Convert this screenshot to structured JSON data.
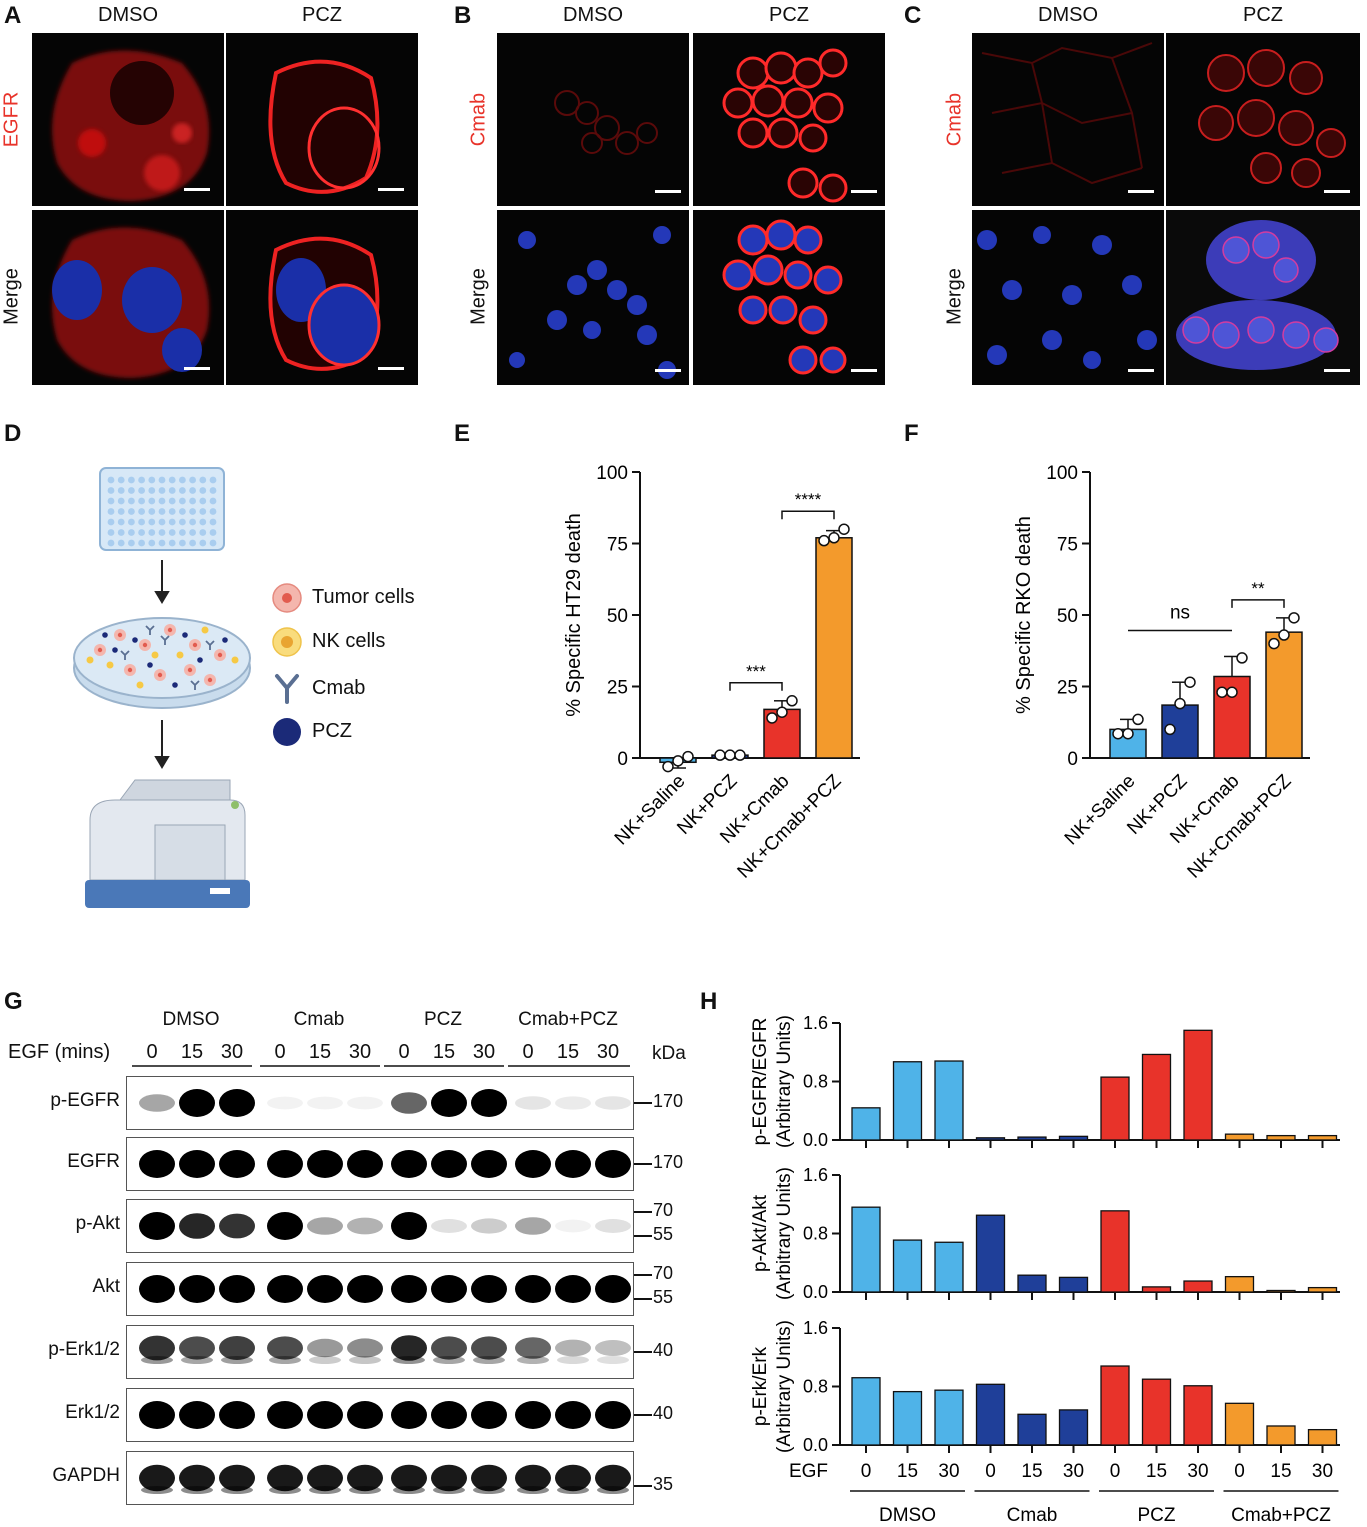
{
  "panels": {
    "A": {
      "letter": "A",
      "cols": [
        "DMSO",
        "PCZ"
      ],
      "rows": [
        "EGFR",
        "Merge"
      ]
    },
    "B": {
      "letter": "B",
      "cols": [
        "DMSO",
        "PCZ"
      ],
      "rows": [
        "Cmab",
        "Merge"
      ]
    },
    "C": {
      "letter": "C",
      "cols": [
        "DMSO",
        "PCZ"
      ],
      "rows": [
        "Cmab",
        "Merge"
      ]
    },
    "D": {
      "letter": "D",
      "legend": [
        "Tumor cells",
        "NK cells",
        "Cmab",
        "PCZ"
      ]
    },
    "E": {
      "letter": "E"
    },
    "F": {
      "letter": "F"
    },
    "G": {
      "letter": "G",
      "groups": [
        "DMSO",
        "Cmab",
        "PCZ",
        "Cmab+PCZ"
      ],
      "egf_label": "EGF (mins)",
      "times": [
        "0",
        "15",
        "30"
      ],
      "kda_label": "kDa",
      "blots": [
        {
          "label": "p-EGFR",
          "markers": [
            "170"
          ]
        },
        {
          "label": "EGFR",
          "markers": [
            "170"
          ]
        },
        {
          "label": "p-Akt",
          "markers": [
            "70",
            "55"
          ]
        },
        {
          "label": "Akt",
          "markers": [
            "70",
            "55"
          ]
        },
        {
          "label": "p-Erk1/2",
          "markers": [
            "40"
          ]
        },
        {
          "label": "Erk1/2",
          "markers": [
            "40"
          ]
        },
        {
          "label": "GAPDH",
          "markers": [
            "35"
          ]
        }
      ]
    },
    "H": {
      "letter": "H",
      "egf_label": "EGF"
    }
  },
  "chart_data": [
    {
      "type": "bar",
      "id": "E",
      "ylabel": "% Specific HT29 death",
      "ylim": [
        0,
        100
      ],
      "yticks": [
        0,
        25,
        50,
        75,
        100
      ],
      "categories": [
        "NK+Saline",
        "NK+PCZ",
        "NK+Cmab",
        "NK+Cmab+PCZ"
      ],
      "values": [
        -1.5,
        1,
        17,
        77
      ],
      "errors": [
        2,
        0.5,
        3,
        2.5
      ],
      "points": [
        [
          -3,
          -1,
          0.5
        ],
        [
          1,
          1,
          1
        ],
        [
          14,
          16,
          20
        ],
        [
          76,
          77,
          80
        ]
      ],
      "colors": [
        "#4fb3e8",
        "#1f3f99",
        "#e8332a",
        "#f39a2c"
      ],
      "significance": [
        {
          "from": 1,
          "to": 2,
          "label": "***"
        },
        {
          "from": 2,
          "to": 3,
          "label": "****"
        }
      ]
    },
    {
      "type": "bar",
      "id": "F",
      "ylabel": "% Specific RKO death",
      "ylim": [
        0,
        100
      ],
      "yticks": [
        0,
        25,
        50,
        75,
        100
      ],
      "categories": [
        "NK+Saline",
        "NK+PCZ",
        "NK+Cmab",
        "NK+Cmab+PCZ"
      ],
      "values": [
        10,
        18.5,
        28.5,
        44
      ],
      "errors": [
        3.5,
        8,
        7,
        5
      ],
      "points": [
        [
          8.5,
          8.5,
          13.5
        ],
        [
          10,
          19,
          26.5
        ],
        [
          23,
          23,
          35
        ],
        [
          40,
          43,
          49
        ]
      ],
      "colors": [
        "#4fb3e8",
        "#1f3f99",
        "#e8332a",
        "#f39a2c"
      ],
      "significance": [
        {
          "from": 0,
          "to": 2,
          "label": "ns"
        },
        {
          "from": 2,
          "to": 3,
          "label": "**"
        }
      ]
    },
    {
      "type": "bar",
      "id": "H",
      "groups": [
        "DMSO",
        "Cmab",
        "PCZ",
        "Cmab+PCZ"
      ],
      "x": [
        "0",
        "15",
        "30",
        "0",
        "15",
        "30",
        "0",
        "15",
        "30",
        "0",
        "15",
        "30"
      ],
      "colors": [
        "#4fb3e8",
        "#1f3f99",
        "#e8332a",
        "#f39a2c"
      ],
      "ylim": [
        0,
        1.6
      ],
      "yticks": [
        "0.0",
        "0.8",
        "1.6"
      ],
      "series": [
        {
          "ylabel": [
            "p-EGFR/EGFR",
            "(Arbitrary Units)"
          ],
          "values": [
            0.44,
            1.07,
            1.08,
            0.03,
            0.04,
            0.05,
            0.86,
            1.17,
            1.5,
            0.08,
            0.06,
            0.06
          ]
        },
        {
          "ylabel": [
            "p-Akt/Akt",
            "(Arbitrary Units)"
          ],
          "values": [
            1.16,
            0.71,
            0.68,
            1.05,
            0.23,
            0.2,
            1.11,
            0.07,
            0.15,
            0.21,
            0.0,
            0.06
          ]
        },
        {
          "ylabel": [
            "p-Erk/Erk",
            "(Arbitrary Units)"
          ],
          "values": [
            0.92,
            0.73,
            0.75,
            0.83,
            0.42,
            0.48,
            1.08,
            0.9,
            0.81,
            0.57,
            0.26,
            0.21
          ]
        }
      ]
    }
  ]
}
